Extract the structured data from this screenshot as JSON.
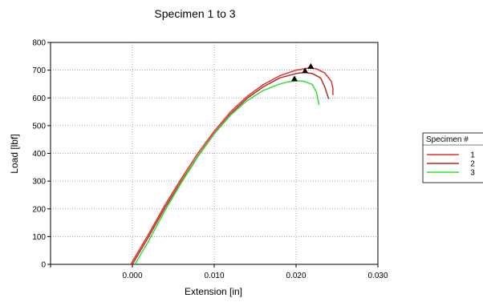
{
  "chart_data": {
    "type": "line",
    "title": "Specimen 1 to 3",
    "xlabel": "Extension [in]",
    "ylabel": "Load [lbf]",
    "xlim": [
      -0.01,
      0.03
    ],
    "ylim": [
      0,
      800
    ],
    "x_ticks": [
      -0.01,
      0.0,
      0.01,
      0.02,
      0.03
    ],
    "x_tick_labels": [
      "",
      "0.000",
      "0.010",
      "0.020",
      "0.030"
    ],
    "y_ticks": [
      0,
      100,
      200,
      300,
      400,
      500,
      600,
      700,
      800
    ],
    "y_tick_labels": [
      "0",
      "100",
      "200",
      "300",
      "400",
      "500",
      "600",
      "700",
      "800"
    ],
    "grid": "dotted",
    "legend": {
      "title": "Specimen #",
      "placement": "right"
    },
    "series": [
      {
        "name": "1",
        "color": "#e03030",
        "x": [
          -0.0002,
          0.002,
          0.004,
          0.006,
          0.008,
          0.01,
          0.012,
          0.014,
          0.016,
          0.018,
          0.02,
          0.021,
          0.0215,
          0.0225,
          0.0235,
          0.0243,
          0.0245,
          0.0245
        ],
        "y": [
          0,
          110,
          215,
          310,
          400,
          480,
          550,
          605,
          648,
          680,
          700,
          705,
          708,
          705,
          690,
          660,
          635,
          610
        ],
        "peak": [
          0.0218,
          708
        ]
      },
      {
        "name": "2",
        "color": "#b03028",
        "x": [
          0.0,
          0.002,
          0.004,
          0.006,
          0.008,
          0.01,
          0.012,
          0.014,
          0.016,
          0.018,
          0.02,
          0.021,
          0.022,
          0.023,
          0.0235,
          0.024
        ],
        "y": [
          0,
          100,
          205,
          300,
          390,
          472,
          542,
          598,
          640,
          672,
          688,
          692,
          688,
          672,
          640,
          596
        ],
        "peak": [
          0.0211,
          692
        ]
      },
      {
        "name": "3",
        "color": "#33dd33",
        "x": [
          0.0003,
          0.002,
          0.004,
          0.006,
          0.008,
          0.01,
          0.012,
          0.014,
          0.016,
          0.018,
          0.019,
          0.02,
          0.021,
          0.022,
          0.0225,
          0.0228
        ],
        "y": [
          0,
          85,
          195,
          295,
          388,
          470,
          538,
          590,
          627,
          650,
          658,
          662,
          660,
          648,
          620,
          575
        ],
        "peak": [
          0.0198,
          663
        ]
      }
    ]
  }
}
